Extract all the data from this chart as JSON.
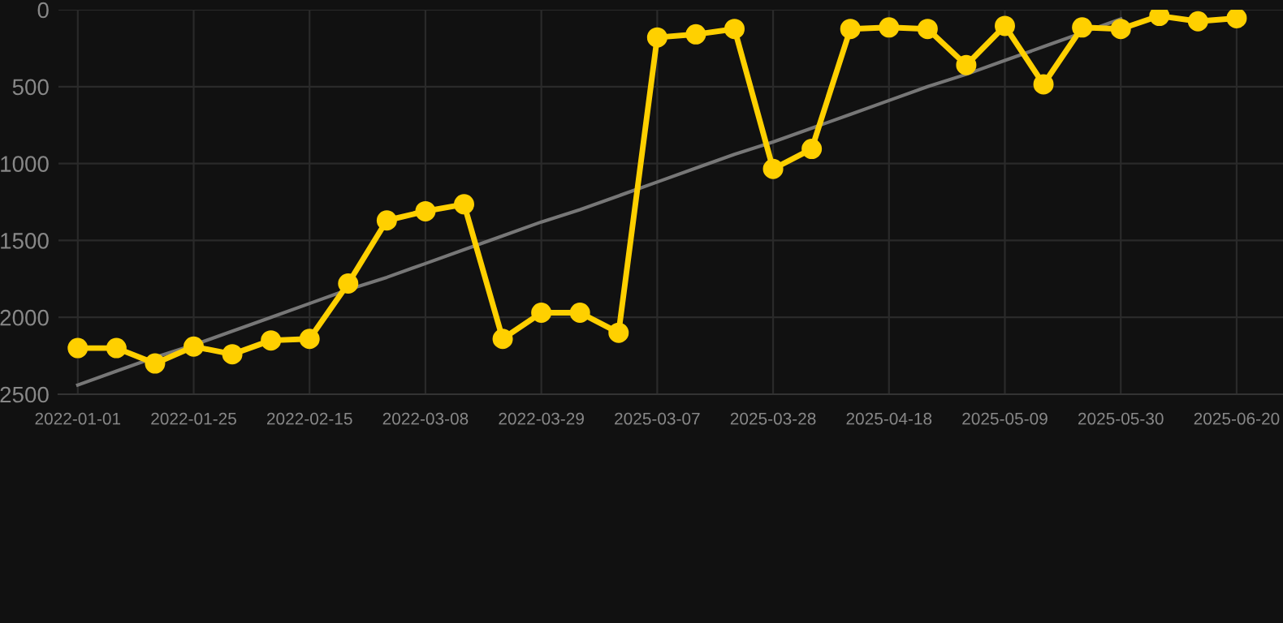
{
  "chart_data": {
    "type": "line",
    "categories": [
      "2022-01-01",
      null,
      null,
      "2022-01-25",
      null,
      null,
      "2022-02-15",
      null,
      null,
      "2022-03-08",
      null,
      null,
      "2022-03-29",
      null,
      null,
      "2025-03-07",
      null,
      null,
      "2025-03-28",
      null,
      null,
      "2025-04-18",
      null,
      null,
      "2025-05-09",
      null,
      null,
      "2025-05-30",
      null,
      null,
      "2025-06-20"
    ],
    "series": [
      {
        "color": "#ffd000",
        "marker": "circle",
        "values": [
          2200,
          2200,
          2300,
          2190,
          2240,
          2150,
          2140,
          1780,
          1370,
          1310,
          1265,
          2140,
          1970,
          1970,
          2100,
          180,
          160,
          125,
          1035,
          905,
          125,
          115,
          125,
          360,
          105,
          485,
          115,
          125,
          40,
          75,
          55
        ]
      },
      {
        "type": "line",
        "color": "#777777",
        "marker": "none",
        "values": [
          2440,
          2350,
          2260,
          2180,
          2090,
          2000,
          1910,
          1820,
          1740,
          1650,
          1560,
          1470,
          1380,
          1300,
          1210,
          1120,
          1030,
          940,
          860,
          770,
          680,
          590,
          500,
          420,
          330,
          240,
          150,
          60,
          null,
          null,
          null
        ]
      }
    ],
    "ylim": [
      2500,
      0
    ],
    "yticks": [
      0,
      500,
      1000,
      1500,
      2000,
      2500
    ],
    "grid": true
  }
}
